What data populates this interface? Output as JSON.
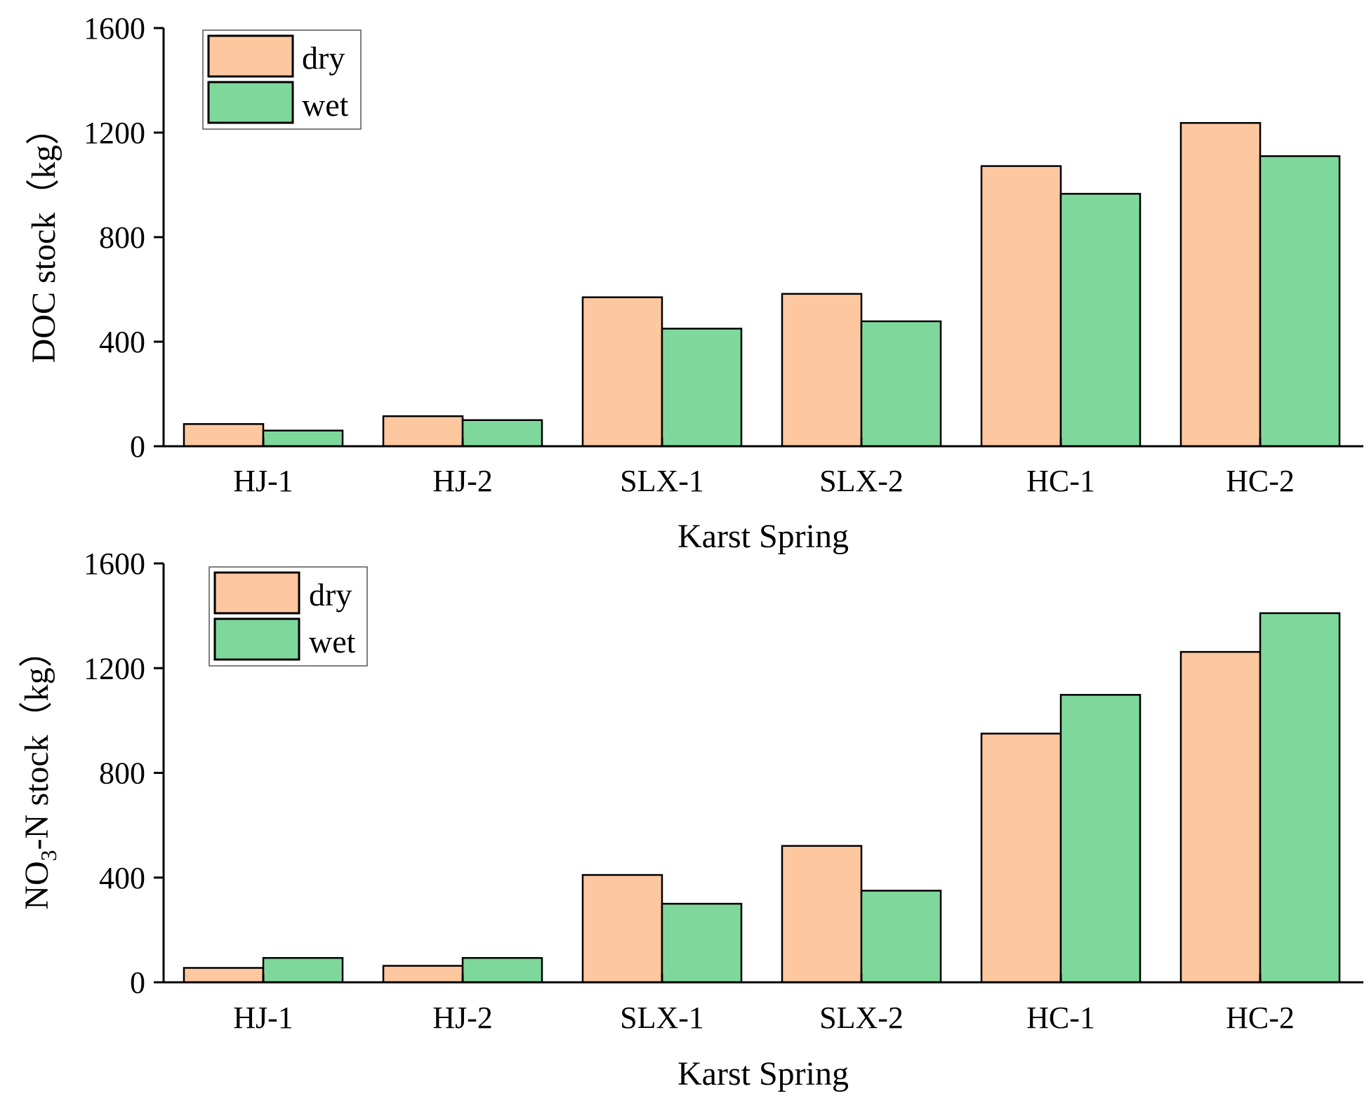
{
  "chart_data": [
    {
      "type": "bar",
      "categories": [
        "HJ-1",
        "HJ-2",
        "SLX-1",
        "SLX-2",
        "HC-1",
        "HC-2"
      ],
      "series": [
        {
          "name": "dry",
          "values": [
            85,
            115,
            570,
            583,
            1072,
            1237
          ]
        },
        {
          "name": "wet",
          "values": [
            60,
            100,
            450,
            478,
            966,
            1110
          ]
        }
      ],
      "colors": {
        "dry": "#fdc79f",
        "wet": "#7fd89b"
      },
      "title": "",
      "xlabel": "Karst Spring",
      "ylabel": "DOC stock（kg）",
      "ylabel_parts": {
        "main": "DOC stock（kg）",
        "sub": "",
        "tail": ""
      },
      "ylim": [
        0,
        1600
      ],
      "yticks": [
        0,
        400,
        800,
        1200,
        1600
      ],
      "legend": "top-left",
      "grid": false
    },
    {
      "type": "bar",
      "categories": [
        "HJ-1",
        "HJ-2",
        "SLX-1",
        "SLX-2",
        "HC-1",
        "HC-2"
      ],
      "series": [
        {
          "name": "dry",
          "values": [
            55,
            63,
            410,
            521,
            950,
            1262
          ]
        },
        {
          "name": "wet",
          "values": [
            93,
            93,
            300,
            350,
            1098,
            1410
          ]
        }
      ],
      "colors": {
        "dry": "#fdc79f",
        "wet": "#7fd89b"
      },
      "title": "",
      "xlabel": "Karst Spring",
      "ylabel": "NO3-N stock（kg）",
      "ylabel_parts": {
        "main": "NO",
        "sub": "3",
        "tail": "-N stock（kg）"
      },
      "ylim": [
        0,
        1600
      ],
      "yticks": [
        0,
        400,
        800,
        1200,
        1600
      ],
      "legend": "top-left",
      "grid": false
    }
  ]
}
